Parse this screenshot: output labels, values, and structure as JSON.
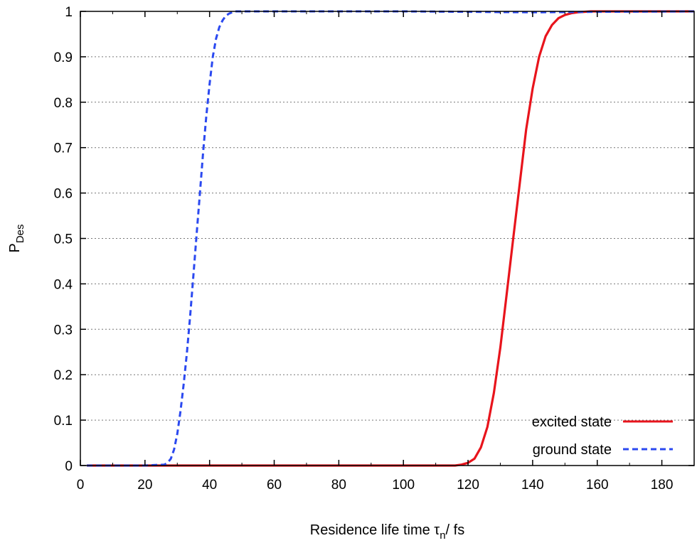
{
  "chart_data": {
    "type": "line",
    "title": "",
    "xlabel": {
      "main": "Residence life time τ",
      "sub": "n",
      "tail": "/ fs"
    },
    "ylabel": {
      "main": "P",
      "sub": "Des"
    },
    "xlim": [
      0,
      190
    ],
    "ylim": [
      0,
      1
    ],
    "xticks": [
      0,
      20,
      40,
      60,
      80,
      100,
      120,
      140,
      160,
      180
    ],
    "yticks": [
      0,
      0.1,
      0.2,
      0.3,
      0.4,
      0.5,
      0.6,
      0.7,
      0.8,
      0.9,
      1
    ],
    "grid": {
      "y": true,
      "x": false,
      "style": "dotted"
    },
    "legend_position": "bottom-right",
    "series": [
      {
        "name": "excited state",
        "color": "#e8141c",
        "dash": "solid",
        "x": [
          2,
          20,
          40,
          60,
          80,
          100,
          116,
          118,
          120,
          122,
          124,
          126,
          128,
          130,
          132,
          134,
          136,
          138,
          140,
          142,
          144,
          146,
          148,
          150,
          152,
          154,
          156,
          158,
          160,
          170,
          180,
          190
        ],
        "y": [
          0,
          0,
          0,
          0,
          0,
          0,
          0,
          0.002,
          0.006,
          0.015,
          0.04,
          0.085,
          0.16,
          0.26,
          0.38,
          0.5,
          0.62,
          0.74,
          0.83,
          0.9,
          0.945,
          0.97,
          0.985,
          0.992,
          0.996,
          0.998,
          0.999,
          1,
          1,
          1,
          1,
          1
        ]
      },
      {
        "name": "ground state",
        "color": "#2b49f0",
        "dash": "dashed",
        "x": [
          2,
          10,
          20,
          26,
          27,
          28,
          29,
          30,
          31,
          32,
          33,
          34,
          35,
          36,
          37,
          38,
          39,
          40,
          41,
          42,
          43,
          44,
          45,
          46,
          47,
          48,
          60,
          80,
          100,
          120,
          140,
          160,
          190
        ],
        "y": [
          0,
          0,
          0,
          0.002,
          0.006,
          0.015,
          0.035,
          0.07,
          0.12,
          0.18,
          0.25,
          0.33,
          0.42,
          0.51,
          0.6,
          0.69,
          0.77,
          0.84,
          0.9,
          0.94,
          0.965,
          0.98,
          0.99,
          0.995,
          0.998,
          1,
          1,
          1,
          1,
          0.999,
          0.998,
          0.999,
          1
        ]
      }
    ]
  }
}
